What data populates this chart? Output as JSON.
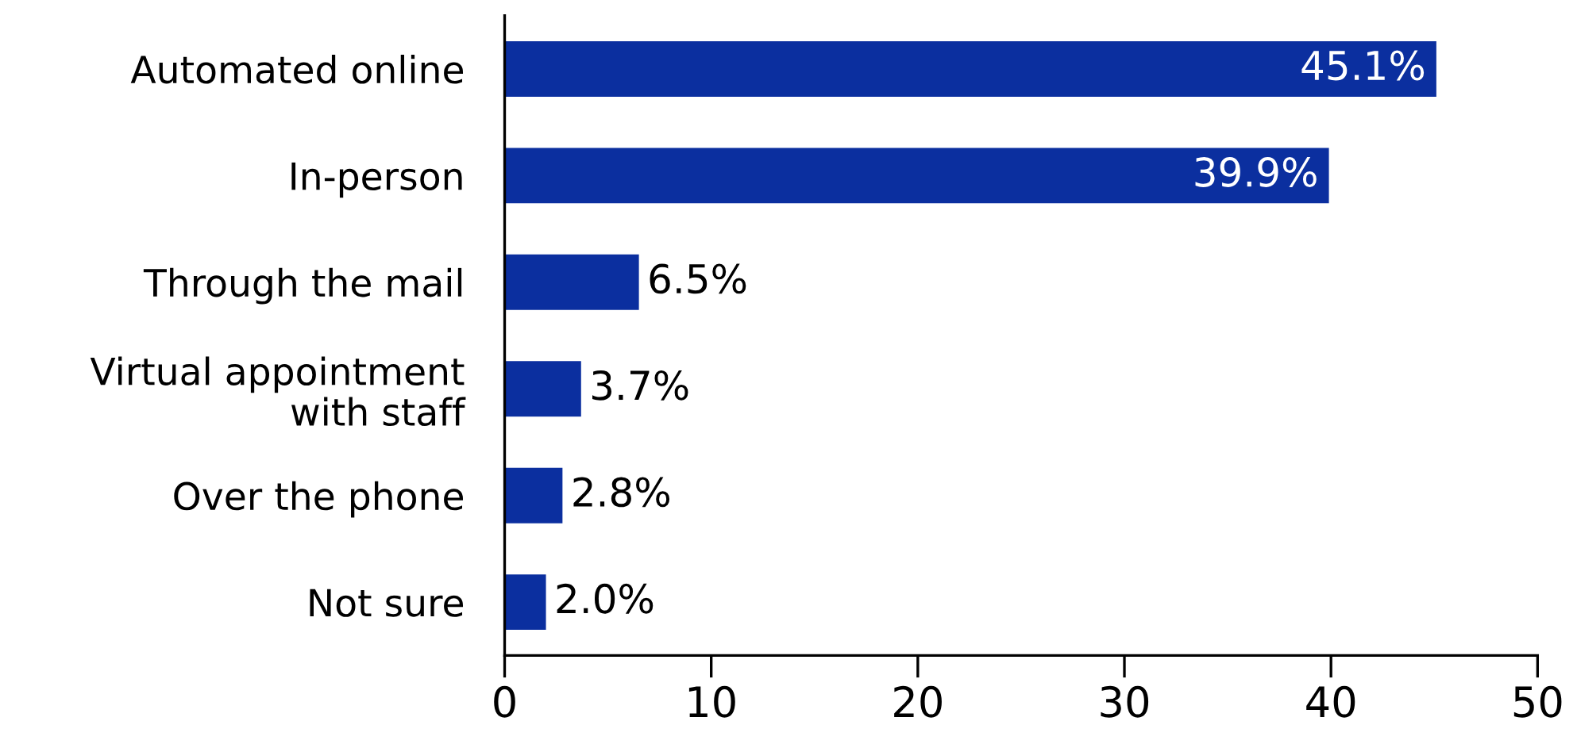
{
  "chart_data": {
    "type": "bar",
    "orientation": "horizontal",
    "categories": [
      "Automated online",
      "In-person",
      "Through the mail",
      "Virtual appointment\nwith staff",
      "Over the phone",
      "Not sure"
    ],
    "values": [
      45.1,
      39.9,
      6.5,
      3.7,
      2.8,
      2.0
    ],
    "value_labels": [
      "45.1%",
      "39.9%",
      "6.5%",
      "3.7%",
      "2.8%",
      "2.0%"
    ],
    "color": "#0b2f9f",
    "xlim": [
      0,
      50
    ],
    "xticks": [
      0,
      10,
      20,
      30,
      40,
      50
    ],
    "grid": false,
    "legend": false
  }
}
